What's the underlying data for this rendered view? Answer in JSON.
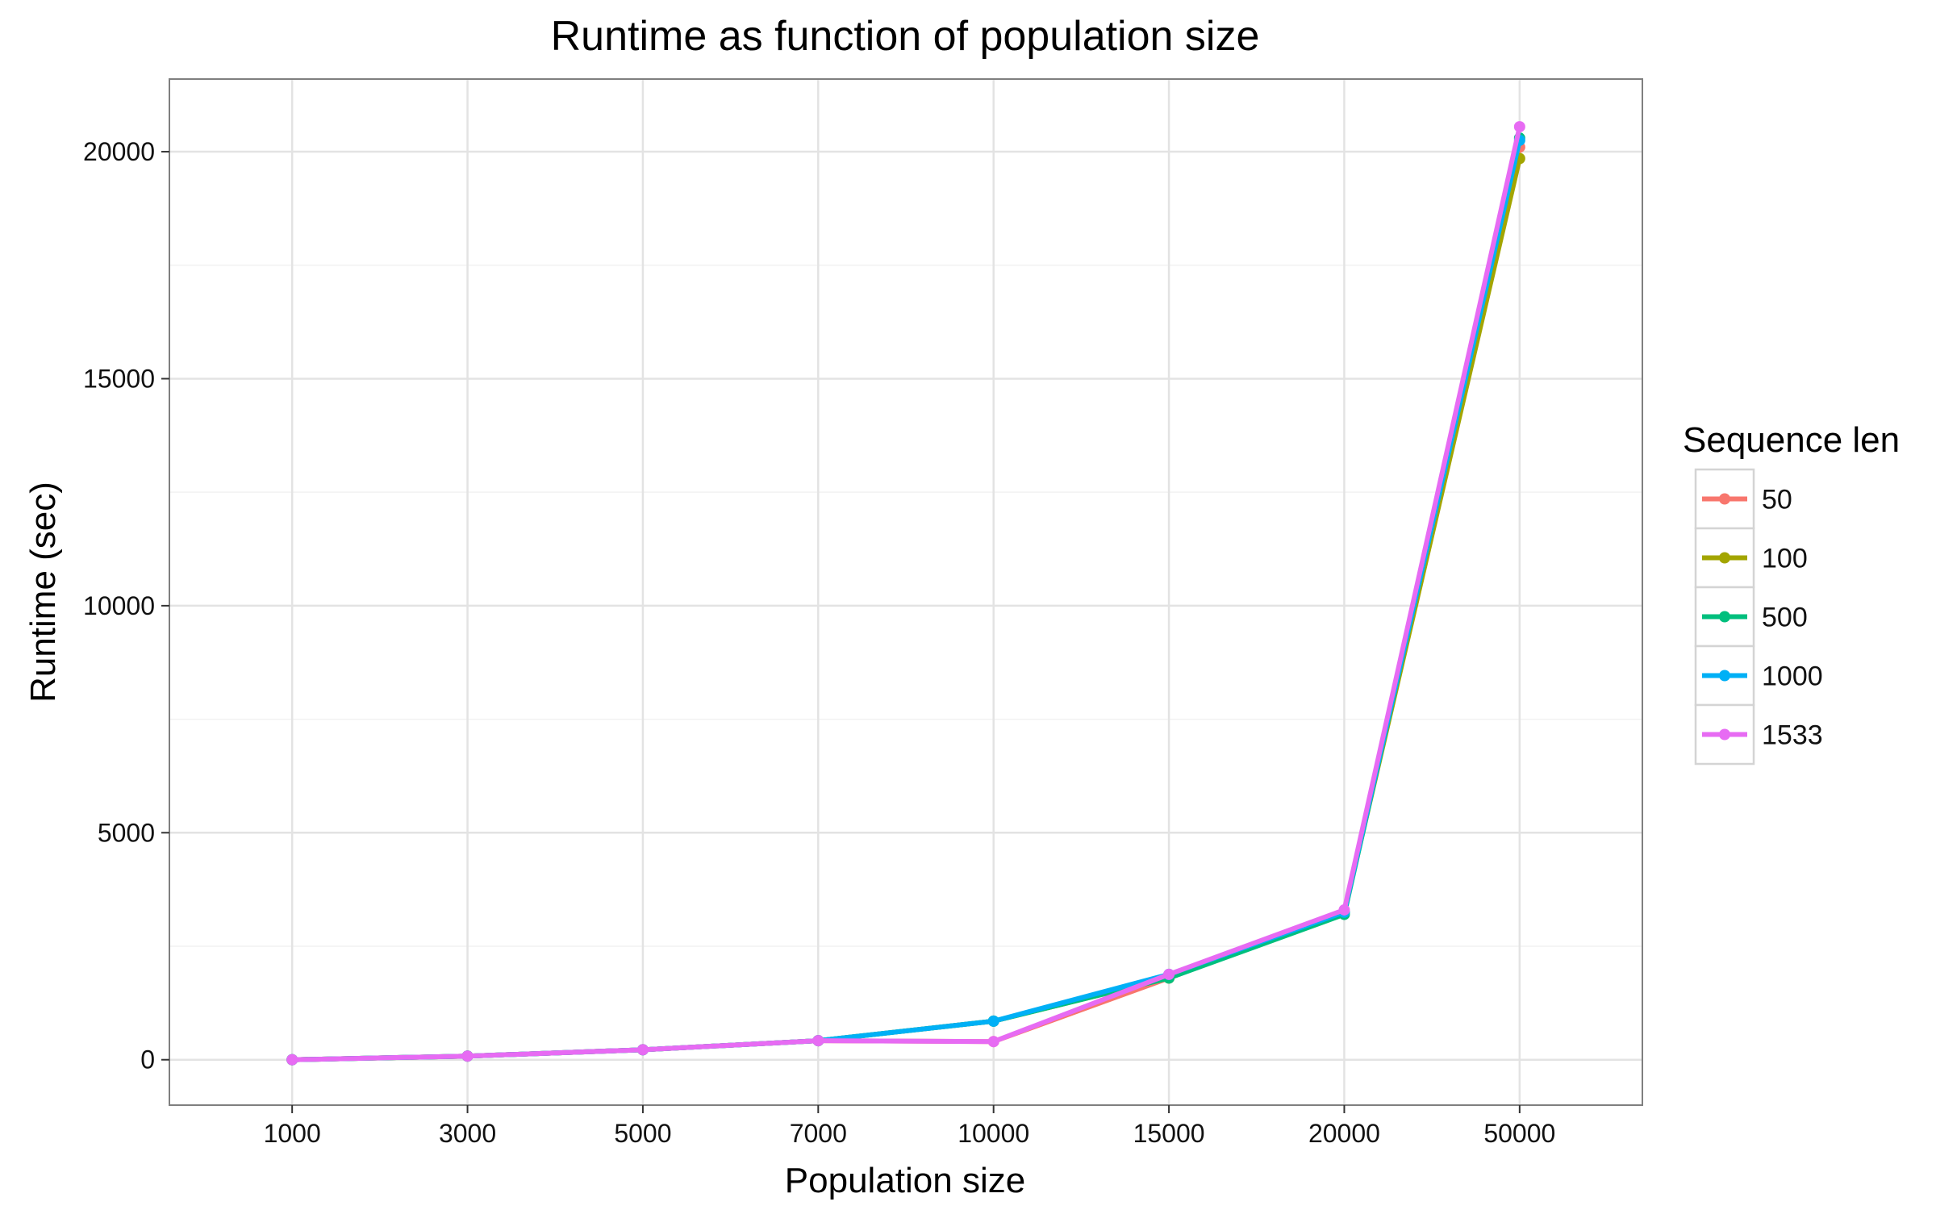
{
  "chart_data": {
    "type": "line",
    "title": "Runtime as function of population size",
    "xlabel": "Population size",
    "ylabel": "Runtime (sec)",
    "categories": [
      "1000",
      "3000",
      "5000",
      "7000",
      "10000",
      "15000",
      "20000",
      "50000"
    ],
    "y_ticks": [
      "0",
      "5000",
      "10000",
      "15000",
      "20000"
    ],
    "y_tick_values": [
      0,
      5000,
      10000,
      15000,
      20000
    ],
    "ylim": [
      -1000,
      21600
    ],
    "grid": true,
    "legend": {
      "title": "Sequence len",
      "position": "right"
    },
    "series": [
      {
        "name": "50",
        "color": "#F8766D",
        "values": [
          0,
          80,
          220,
          420,
          400,
          1800,
          3250,
          20100
        ]
      },
      {
        "name": "100",
        "color": "#A3A500",
        "values": [
          0,
          80,
          220,
          420,
          850,
          1800,
          3250,
          19850
        ]
      },
      {
        "name": "500",
        "color": "#00BF7D",
        "values": [
          0,
          80,
          220,
          420,
          850,
          1800,
          3200,
          20300
        ]
      },
      {
        "name": "1000",
        "color": "#00B0F6",
        "values": [
          0,
          80,
          220,
          420,
          850,
          1880,
          3250,
          20250
        ]
      },
      {
        "name": "1533",
        "color": "#E76BF3",
        "values": [
          0,
          80,
          220,
          420,
          400,
          1880,
          3300,
          20550
        ]
      }
    ]
  }
}
